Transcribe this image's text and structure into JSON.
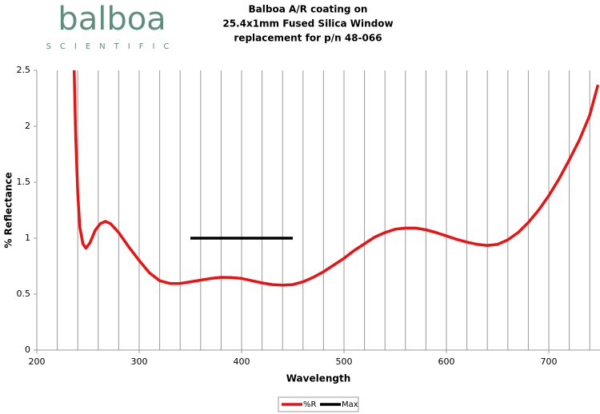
{
  "logo": {
    "name": "balboa",
    "sub": "SCIENTIFIC"
  },
  "chart_data": {
    "type": "line",
    "title": [
      "Balboa A/R coating on",
      "25.4x1mm Fused Silica Window",
      "replacement for p/n 48-066"
    ],
    "xlabel": "Wavelength",
    "ylabel": "% Reflectance",
    "xlim": [
      200,
      750
    ],
    "ylim": [
      0,
      2.5
    ],
    "xticks": [
      200,
      300,
      400,
      500,
      600,
      700
    ],
    "x_minor_grid": [
      220,
      240,
      260,
      280,
      320,
      340,
      360,
      380,
      420,
      440,
      460,
      480,
      520,
      540,
      560,
      580,
      620,
      640,
      660,
      680,
      720,
      740
    ],
    "yticks": [
      0,
      0.5,
      1,
      1.5,
      2,
      2.5
    ],
    "grid": true,
    "legend": "bottom",
    "series": [
      {
        "name": "%R",
        "color": "#ee1111",
        "x": [
          236.5,
          238,
          240,
          242,
          245,
          248,
          252,
          257,
          262,
          267,
          272,
          280,
          290,
          300,
          310,
          320,
          330,
          340,
          350,
          360,
          370,
          380,
          390,
          400,
          410,
          420,
          430,
          440,
          450,
          460,
          470,
          480,
          490,
          500,
          510,
          520,
          530,
          540,
          550,
          560,
          570,
          580,
          590,
          600,
          610,
          620,
          630,
          640,
          650,
          660,
          670,
          680,
          690,
          700,
          710,
          720,
          730,
          740,
          748
        ],
        "values": [
          2.5,
          1.9,
          1.4,
          1.1,
          0.95,
          0.91,
          0.96,
          1.07,
          1.13,
          1.15,
          1.13,
          1.05,
          0.92,
          0.8,
          0.69,
          0.62,
          0.595,
          0.595,
          0.61,
          0.625,
          0.64,
          0.65,
          0.648,
          0.64,
          0.62,
          0.6,
          0.585,
          0.58,
          0.585,
          0.61,
          0.65,
          0.7,
          0.76,
          0.82,
          0.89,
          0.95,
          1.01,
          1.05,
          1.08,
          1.09,
          1.09,
          1.075,
          1.05,
          1.02,
          0.99,
          0.965,
          0.945,
          0.935,
          0.945,
          0.985,
          1.05,
          1.14,
          1.25,
          1.38,
          1.53,
          1.7,
          1.88,
          2.1,
          2.37
        ]
      },
      {
        "name": "Max",
        "color": "#000000",
        "x": [
          350,
          450
        ],
        "values": [
          1,
          1
        ]
      }
    ]
  }
}
